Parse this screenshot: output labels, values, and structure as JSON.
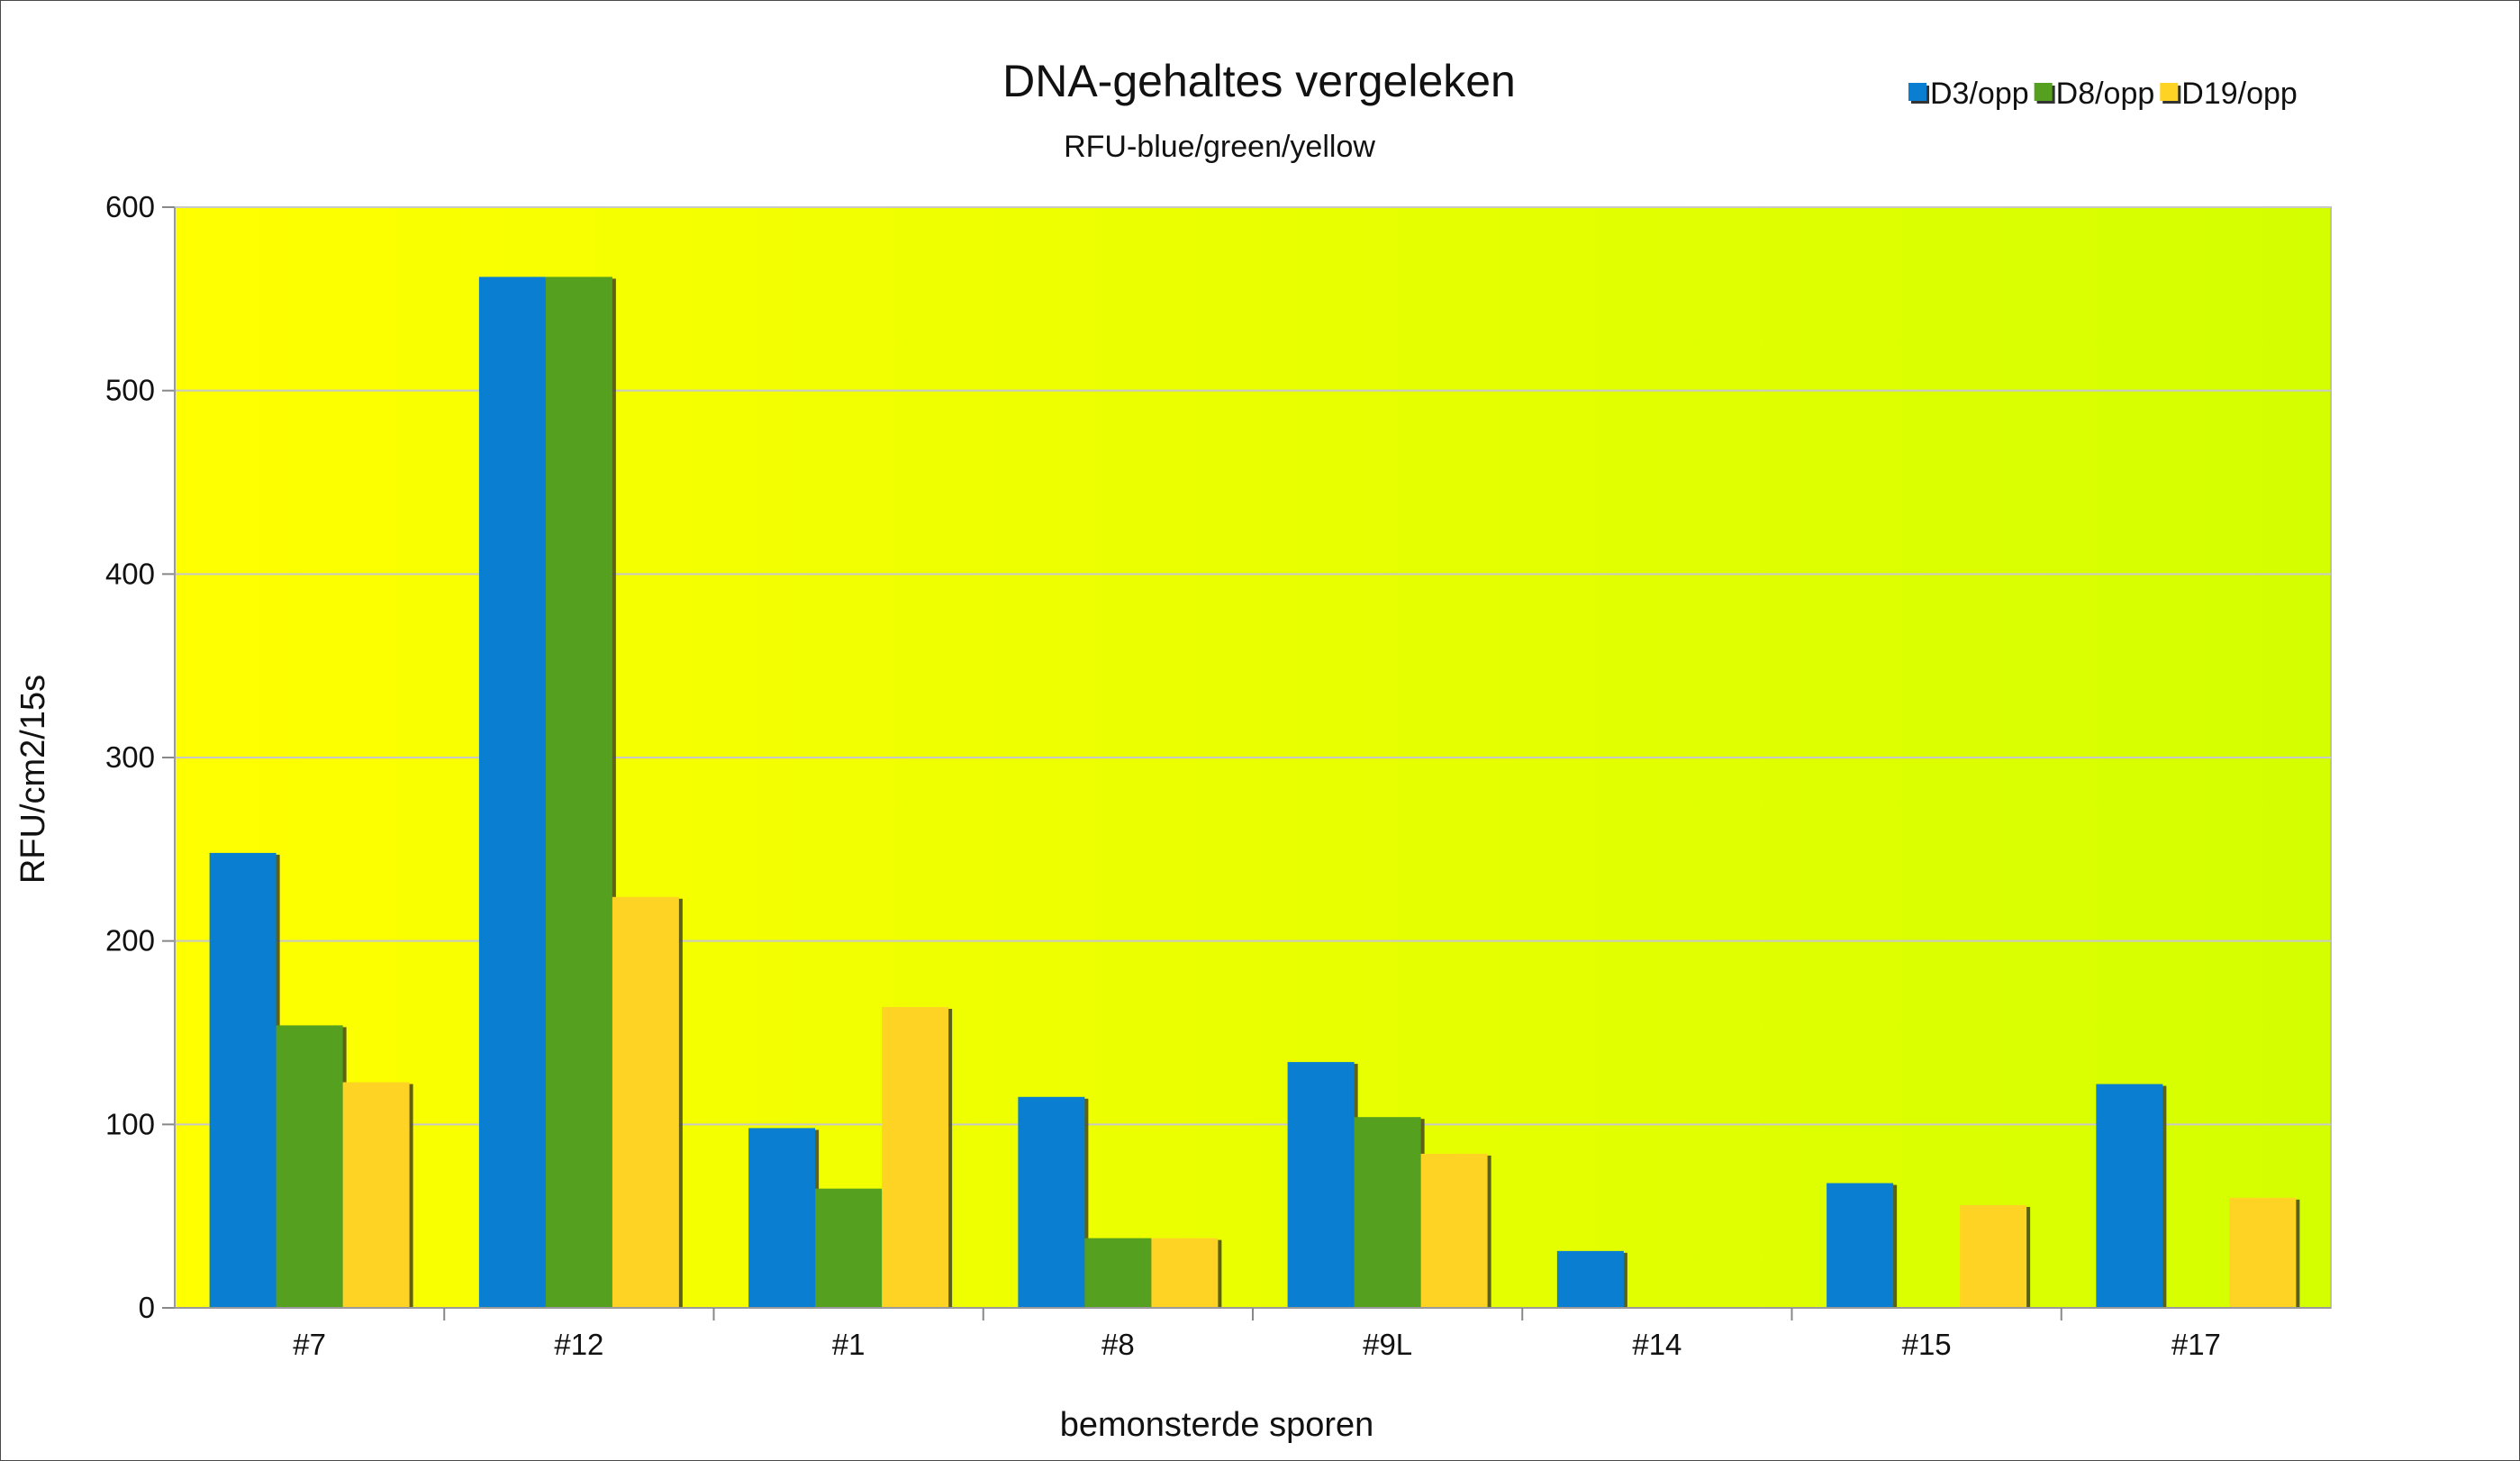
{
  "chart_data": {
    "type": "bar",
    "title": "DNA-gehaltes vergeleken",
    "subtitle": "RFU-blue/green/yellow",
    "xlabel": "bemonsterde sporen",
    "ylabel": "RFU/cm2/15s",
    "ylim": [
      0,
      600
    ],
    "yticks": [
      0,
      100,
      200,
      300,
      400,
      500,
      600
    ],
    "grid": true,
    "legend_position": "top-right",
    "categories": [
      "#7",
      "#12",
      "#1",
      "#8",
      "#9L",
      "#14",
      "#15",
      "#17"
    ],
    "series": [
      {
        "name": "D3/opp",
        "color": "#0a7fd1",
        "values": [
          248,
          562,
          98,
          115,
          134,
          31,
          68,
          122
        ]
      },
      {
        "name": "D8/opp",
        "color": "#55a01e",
        "values": [
          154,
          562,
          65,
          38,
          104,
          0,
          0,
          0
        ]
      },
      {
        "name": "D19/opp",
        "color": "#ffd324",
        "values": [
          123,
          224,
          164,
          38,
          84,
          0,
          56,
          60
        ]
      }
    ],
    "background_gradient": [
      "#ffff00",
      "#d4ff00"
    ],
    "gridline_color": "#c8c8c8"
  }
}
